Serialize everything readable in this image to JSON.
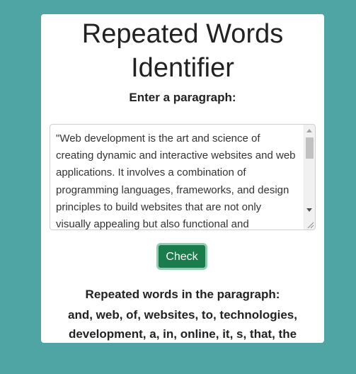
{
  "page": {
    "title_line1": "Repeated Words",
    "title_line2": "Identifier",
    "prompt_label": "Enter a paragraph:"
  },
  "input": {
    "value": "\"Web development is the art and science of creating dynamic and interactive websites and web applications. It involves a combination of programming languages, frameworks, and design principles to build websites that are not only visually appealing but also functional and"
  },
  "actions": {
    "check_label": "Check"
  },
  "result": {
    "heading": "Repeated words in the paragraph:",
    "words": "and, web, of, websites, to, technologies, development, a, in, online, it, s, that, the"
  },
  "colors": {
    "background": "#4ea5a4",
    "card": "#ffffff",
    "button": "#1a7b4b",
    "button_ring": "#8ecfb2"
  },
  "icons": {
    "scroll_up": "scroll-up-arrow-icon",
    "scroll_down": "scroll-down-arrow-icon",
    "resize": "resize-grip-icon"
  }
}
